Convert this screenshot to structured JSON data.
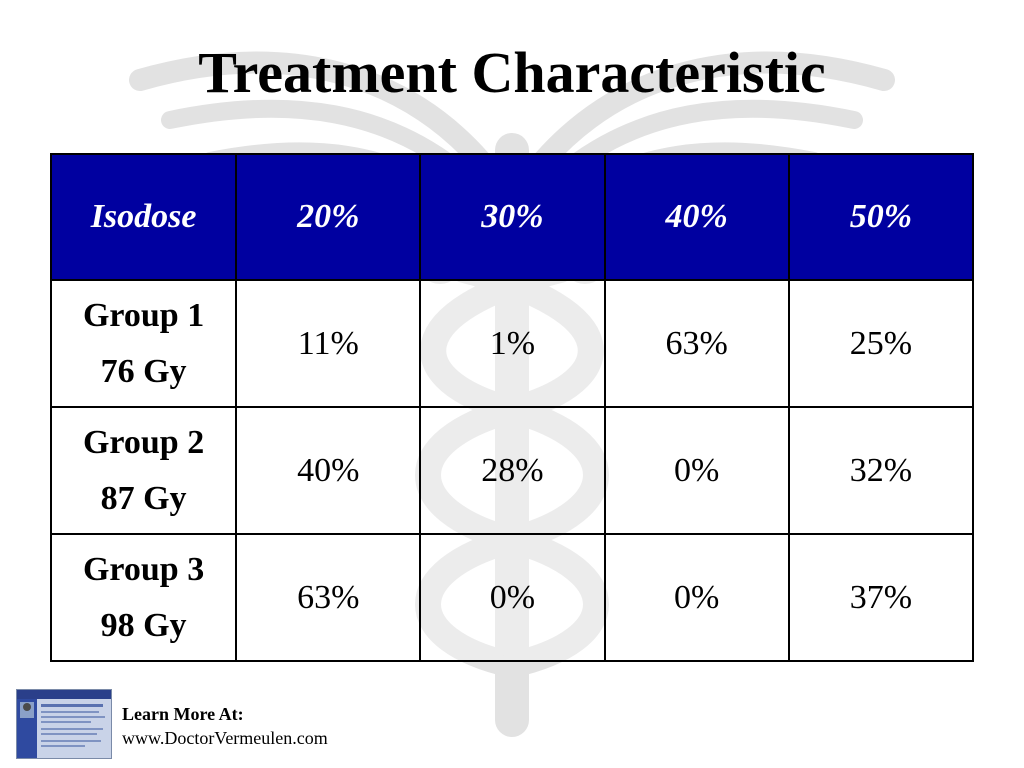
{
  "slide": {
    "title": "Treatment Characteristic"
  },
  "table": {
    "header": [
      "Isodose",
      "20%",
      "30%",
      "40%",
      "50%"
    ],
    "rows": [
      {
        "group": "Group 1",
        "dose": "76 Gy",
        "values": [
          "11%",
          "1%",
          "63%",
          "25%"
        ]
      },
      {
        "group": "Group 2",
        "dose": "87 Gy",
        "values": [
          "40%",
          "28%",
          "0%",
          "32%"
        ]
      },
      {
        "group": "Group 3",
        "dose": "98 Gy",
        "values": [
          "63%",
          "0%",
          "0%",
          "37%"
        ]
      }
    ]
  },
  "footer": {
    "label": "Learn More At:",
    "url": "www.DoctorVermeulen.com"
  },
  "colors": {
    "header_bg": "#0000a0",
    "header_text": "#ffffff",
    "watermark": "#e3e3e3"
  },
  "icons": {
    "watermark": "caduceus-watermark-icon",
    "thumbnail": "website-thumbnail-icon"
  }
}
